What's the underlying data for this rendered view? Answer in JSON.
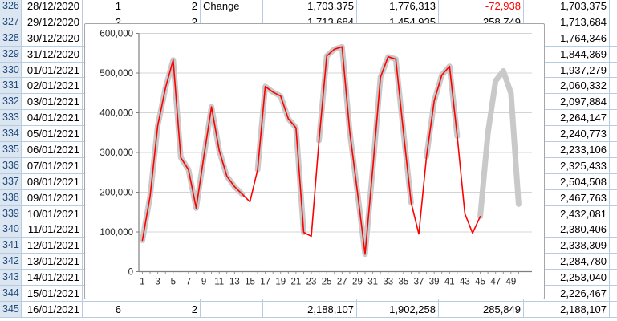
{
  "sheet": {
    "columns": [
      "row_number",
      "date",
      "weekday_index",
      "param",
      "label",
      "value",
      "model_value",
      "change",
      "total"
    ],
    "rows": [
      {
        "num": "326",
        "date": "28/12/2020",
        "c": "1",
        "d": "2",
        "e": "Change",
        "f": "1,703,375",
        "g": "1,776,313",
        "h": "-72,938",
        "i": "1,703,375"
      },
      {
        "num": "327",
        "date": "29/12/2020",
        "c": "2",
        "d": "2",
        "e": "",
        "f": "1,713,684",
        "g": "1,454,935",
        "h": "258,749",
        "i": "1,713,684"
      },
      {
        "num": "328",
        "date": "30/12/2020",
        "c": "",
        "d": "",
        "e": "",
        "f": "",
        "g": "",
        "h": "",
        "i": "1,764,346"
      },
      {
        "num": "329",
        "date": "31/12/2020",
        "c": "",
        "d": "",
        "e": "",
        "f": "",
        "g": "",
        "h": "",
        "i": "1,844,369"
      },
      {
        "num": "330",
        "date": "01/01/2021",
        "c": "",
        "d": "",
        "e": "",
        "f": "",
        "g": "",
        "h": "",
        "i": "1,937,279"
      },
      {
        "num": "331",
        "date": "02/01/2021",
        "c": "",
        "d": "",
        "e": "",
        "f": "",
        "g": "",
        "h": "",
        "i": "2,060,332"
      },
      {
        "num": "332",
        "date": "03/01/2021",
        "c": "",
        "d": "",
        "e": "",
        "f": "",
        "g": "",
        "h": "",
        "i": "2,097,884"
      },
      {
        "num": "333",
        "date": "04/01/2021",
        "c": "",
        "d": "",
        "e": "",
        "f": "",
        "g": "",
        "h": "",
        "i": "2,264,147"
      },
      {
        "num": "334",
        "date": "05/01/2021",
        "c": "",
        "d": "",
        "e": "",
        "f": "",
        "g": "",
        "h": "",
        "i": "2,240,773"
      },
      {
        "num": "335",
        "date": "06/01/2021",
        "c": "",
        "d": "",
        "e": "",
        "f": "",
        "g": "",
        "h": "",
        "i": "2,233,106"
      },
      {
        "num": "336",
        "date": "07/01/2021",
        "c": "",
        "d": "",
        "e": "",
        "f": "",
        "g": "",
        "h": "",
        "i": "2,325,433"
      },
      {
        "num": "337",
        "date": "08/01/2021",
        "c": "",
        "d": "",
        "e": "",
        "f": "",
        "g": "",
        "h": "",
        "i": "2,504,508"
      },
      {
        "num": "338",
        "date": "09/01/2021",
        "c": "",
        "d": "",
        "e": "",
        "f": "",
        "g": "",
        "h": "",
        "i": "2,467,763"
      },
      {
        "num": "339",
        "date": "10/01/2021",
        "c": "",
        "d": "",
        "e": "",
        "f": "",
        "g": "",
        "h": "",
        "i": "2,432,081"
      },
      {
        "num": "340",
        "date": "11/01/2021",
        "c": "",
        "d": "",
        "e": "",
        "f": "",
        "g": "",
        "h": "",
        "i": "2,380,406"
      },
      {
        "num": "341",
        "date": "12/01/2021",
        "c": "",
        "d": "",
        "e": "",
        "f": "",
        "g": "",
        "h": "",
        "i": "2,338,309"
      },
      {
        "num": "342",
        "date": "13/01/2021",
        "c": "",
        "d": "",
        "e": "",
        "f": "",
        "g": "",
        "h": "",
        "i": "2,284,780"
      },
      {
        "num": "343",
        "date": "14/01/2021",
        "c": "",
        "d": "",
        "e": "",
        "f": "",
        "g": "",
        "h": "",
        "i": "2,253,040"
      },
      {
        "num": "344",
        "date": "15/01/2021",
        "c": "",
        "d": "",
        "e": "",
        "f": "",
        "g": "",
        "h": "",
        "i": "2,226,467"
      },
      {
        "num": "345",
        "date": "16/01/2021",
        "c": "6",
        "d": "2",
        "e": "",
        "f": "2,188,107",
        "g": "1,902,258",
        "h": "285,849",
        "i": "2,188,107"
      }
    ]
  },
  "chart_data": {
    "type": "line",
    "title": "",
    "xlabel": "",
    "ylabel": "",
    "x_range": [
      1,
      50
    ],
    "ylim": [
      0,
      600000
    ],
    "grid": true,
    "legend": "none",
    "xticks": [
      1,
      3,
      5,
      7,
      9,
      11,
      13,
      15,
      17,
      19,
      21,
      23,
      25,
      27,
      29,
      31,
      33,
      35,
      37,
      39,
      41,
      43,
      45,
      47,
      49
    ],
    "yticks": [
      {
        "value": 600000,
        "label": "600,000"
      },
      {
        "value": 500000,
        "label": "500,000"
      },
      {
        "value": 400000,
        "label": "400,000"
      },
      {
        "value": 300000,
        "label": "300,000"
      },
      {
        "value": 200000,
        "label": "200,000"
      },
      {
        "value": 100000,
        "label": "100,000"
      },
      {
        "value": 0,
        "label": "0"
      }
    ],
    "series": [
      {
        "name": "model-line",
        "color": "#c9c9c9",
        "stroke_width": 7,
        "values": [
          79000,
          190000,
          368000,
          462000,
          533000,
          287000,
          257000,
          160000,
          290000,
          415000,
          305000,
          240000,
          214000,
          195000,
          null,
          257000,
          466000,
          452000,
          442000,
          385000,
          362000,
          99000,
          null,
          330000,
          543000,
          560000,
          566000,
          352000,
          200000,
          44000,
          260000,
          489000,
          541000,
          535000,
          350000,
          174000,
          null,
          290000,
          430000,
          495000,
          517000,
          341000,
          null,
          null,
          139000,
          350000,
          480000,
          505000,
          449000,
          170000
        ]
      },
      {
        "name": "actual-line",
        "color": "#ff0000",
        "stroke_width": 1.6,
        "values": [
          79000,
          190000,
          368000,
          462000,
          533000,
          287000,
          257000,
          160000,
          290000,
          415000,
          305000,
          240000,
          214000,
          195000,
          176000,
          257000,
          466000,
          452000,
          442000,
          385000,
          362000,
          99000,
          89000,
          330000,
          543000,
          560000,
          566000,
          352000,
          200000,
          44000,
          260000,
          489000,
          541000,
          535000,
          350000,
          174000,
          95000,
          290000,
          430000,
          495000,
          517000,
          341000,
          146000,
          97000,
          139000,
          null,
          null,
          null,
          null,
          null
        ]
      }
    ]
  }
}
